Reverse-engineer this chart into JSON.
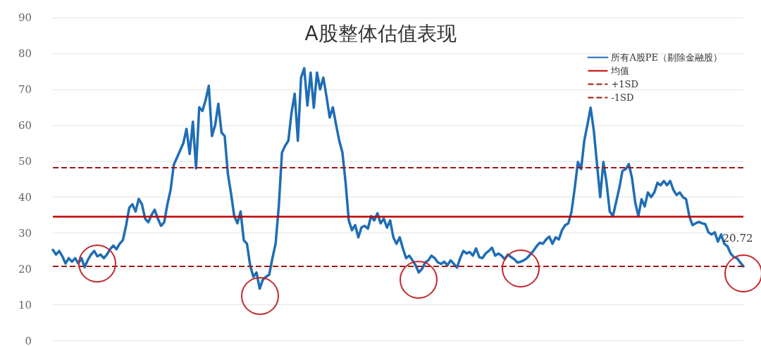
{
  "chart_data": {
    "type": "line",
    "title": "A股整体估值表现",
    "categories": [
      null,
      null,
      null,
      null,
      null,
      null,
      null,
      null,
      null,
      null,
      null,
      null,
      null,
      null,
      null,
      null,
      null,
      null,
      null,
      null,
      null,
      null,
      null,
      null,
      null,
      null,
      null,
      null,
      null,
      null,
      null,
      null,
      null,
      null,
      null,
      null,
      null,
      null,
      null,
      null,
      null,
      null,
      null,
      null,
      null,
      null,
      null,
      null,
      null,
      null,
      null,
      null,
      null,
      null,
      null,
      null,
      null,
      null,
      null,
      null,
      null,
      null,
      null,
      null,
      null,
      null,
      null,
      null,
      null,
      null,
      null,
      null,
      null,
      null,
      null,
      null,
      null,
      null,
      null,
      null,
      null,
      null,
      null,
      null,
      null,
      null,
      null,
      null,
      null,
      null,
      null,
      null,
      null,
      null,
      null,
      null,
      null,
      null,
      null,
      null,
      null,
      null,
      null,
      null,
      null,
      null,
      null,
      null,
      null,
      null,
      null,
      null,
      null,
      null,
      null,
      null,
      null,
      null,
      null,
      null,
      null,
      null,
      null,
      null,
      null,
      null,
      null,
      null,
      null,
      null,
      null,
      null,
      null,
      null,
      null,
      null,
      null,
      null,
      null,
      null,
      null,
      null,
      null,
      null,
      null,
      null,
      null,
      null,
      null,
      null,
      null,
      null,
      null,
      null,
      null,
      null,
      null,
      null,
      null,
      null,
      null,
      null,
      null,
      null,
      null,
      null,
      null,
      null,
      null,
      null,
      null,
      null,
      null,
      null,
      null,
      null,
      null,
      null,
      null,
      null,
      null,
      null,
      null,
      null,
      null,
      null,
      null,
      null,
      null,
      null,
      null,
      null,
      null,
      null,
      null,
      null,
      null,
      null,
      null,
      null,
      null,
      null,
      null,
      null,
      null,
      null,
      null,
      null,
      null,
      null,
      null,
      null,
      null,
      null,
      null,
      null,
      null,
      null
    ],
    "series": [
      {
        "name": "所有A股PE（剔除金融股）",
        "color": "#1f6db5",
        "values": [
          25.3,
          24,
          25,
          23.5,
          21.5,
          23,
          22,
          23,
          21.5,
          23,
          20.5,
          22.5,
          24,
          25,
          23.5,
          24,
          23,
          24,
          25.5,
          26.5,
          25.5,
          27,
          28,
          32,
          37,
          38,
          36,
          39.5,
          38,
          34,
          33,
          35,
          36.5,
          34,
          32,
          33,
          38,
          42,
          49,
          51,
          53,
          55,
          59,
          52,
          61,
          48,
          65,
          64,
          67,
          71,
          57,
          60,
          66,
          58,
          57,
          46.5,
          41,
          34.7,
          32.7,
          36,
          28,
          27,
          21,
          17.8,
          19,
          14.5,
          17,
          17.8,
          18.4,
          23,
          27,
          37.4,
          52.4,
          54.3,
          55.7,
          63.5,
          68.8,
          55.7,
          73.3,
          75.9,
          65.5,
          74.7,
          64.9,
          74.7,
          70,
          73.3,
          68,
          62.2,
          65,
          60.2,
          55.7,
          52.4,
          44,
          33.5,
          30.8,
          32.2,
          28.8,
          31.6,
          32,
          31.2,
          34.7,
          33.5,
          35.5,
          32.7,
          34,
          31.5,
          33.5,
          28.8,
          27,
          28.8,
          25.7,
          23,
          23.7,
          22.4,
          21,
          19,
          20,
          21.8,
          22.4,
          23.7,
          23,
          21.8,
          21.4,
          22,
          21,
          22.4,
          21.4,
          20.4,
          23,
          25,
          24.3,
          24.7,
          23.7,
          25.7,
          23.3,
          23,
          24.3,
          25,
          25.9,
          23.7,
          24.3,
          23.7,
          22.7,
          24,
          23.3,
          22.7,
          21.8,
          22,
          22.4,
          23,
          24,
          25,
          26.3,
          27.3,
          27,
          28.2,
          29,
          27,
          28.8,
          28.2,
          30.8,
          32.2,
          32.7,
          36,
          42.5,
          49.8,
          47.8,
          55.7,
          60.2,
          64.9,
          58.5,
          49.2,
          40,
          49.8,
          44,
          36,
          34.7,
          38.6,
          42.5,
          47.3,
          47.8,
          49.2,
          45.3,
          38.6,
          34.7,
          39.4,
          37.4,
          41.3,
          40,
          41.3,
          44,
          43.3,
          44.5,
          43.3,
          44.5,
          42,
          40.6,
          41.3,
          40,
          39.4,
          34.7,
          32.2,
          32.7,
          33.1,
          32.7,
          32.5,
          30.2,
          29.6,
          30.2,
          27.6,
          29.6,
          27,
          26.3,
          24.3,
          23.3,
          23,
          21.8,
          20.72
        ]
      }
    ],
    "ref_lines": [
      {
        "axis": "y",
        "value": 34.5,
        "label": "均值",
        "color": "#c00000",
        "line_style": "solid"
      },
      {
        "axis": "y",
        "value": 48.2,
        "label": "+1SD",
        "color": "#a01818",
        "line_style": "dashed"
      },
      {
        "axis": "y",
        "value": 20.8,
        "label": "-1SD",
        "color": "#a01818",
        "line_style": "dashed"
      }
    ],
    "annotations": [
      {
        "text": "20.72",
        "y": 20.72
      }
    ],
    "ylim": [
      0,
      90
    ],
    "yticks": [
      0,
      10,
      20,
      30,
      40,
      50,
      60,
      70,
      80,
      90
    ],
    "grid": "y",
    "legend": "top right",
    "tick_labels": "y",
    "line_style": "solid"
  }
}
